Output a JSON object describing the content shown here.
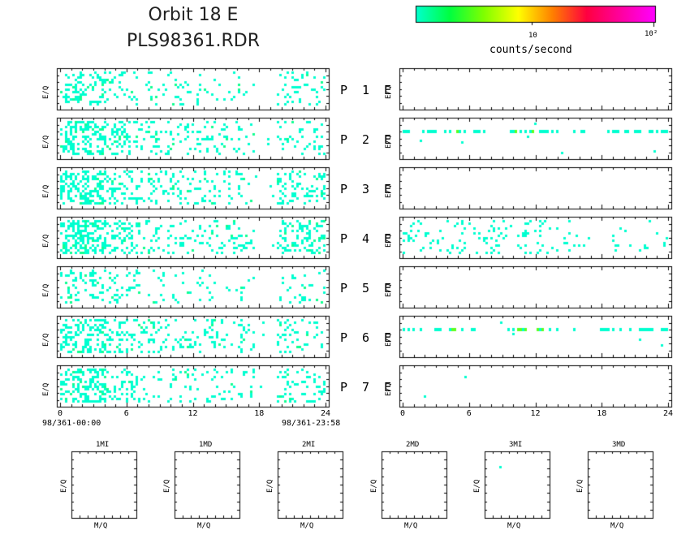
{
  "header": {
    "title_line1": "Orbit 18 E",
    "title_line2": "PLS98361.RDR"
  },
  "colorbar": {
    "tick_10": "10",
    "tick_100": "10²",
    "label": "counts/second",
    "stops": [
      "#00ffd0",
      "#00ff40",
      "#80ff00",
      "#ffff00",
      "#ff8000",
      "#ff0040",
      "#ff00a0",
      "#ff00ff"
    ]
  },
  "chart_data": {
    "type": "heatmap",
    "y_axis_label": "E/Q",
    "x_ticks": [
      "0",
      "6",
      "12",
      "18",
      "24"
    ],
    "x_range": [
      0,
      24
    ],
    "x_start_label": "98/361-00:00",
    "x_end_label": "98/361-23:58",
    "row_labels": [
      {
        "p": "P",
        "n": "1",
        "e": "E"
      },
      {
        "p": "P",
        "n": "2",
        "e": "E"
      },
      {
        "p": "P",
        "n": "3",
        "e": "E"
      },
      {
        "p": "P",
        "n": "4",
        "e": "E"
      },
      {
        "p": "P",
        "n": "5",
        "e": "E"
      },
      {
        "p": "P",
        "n": "6",
        "e": "E"
      },
      {
        "p": "P",
        "n": "7",
        "e": "E"
      }
    ],
    "mass_panels": {
      "titles": [
        "1MI",
        "1MD",
        "2MI",
        "2MD",
        "3MI",
        "3MD"
      ],
      "x_axis_label": "M/Q",
      "y_axis_label": "E/Q"
    }
  }
}
